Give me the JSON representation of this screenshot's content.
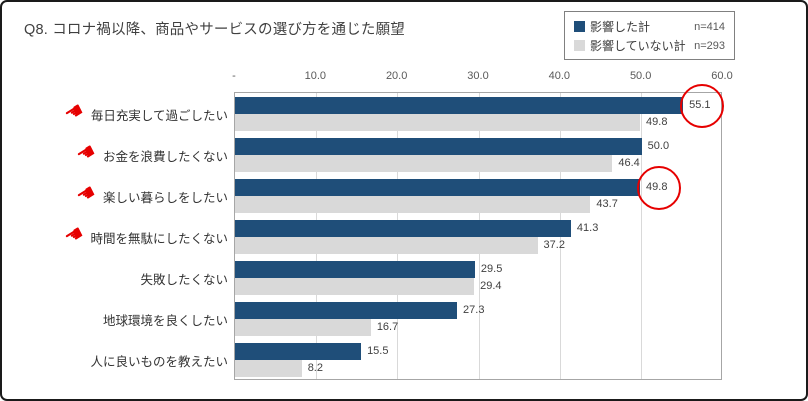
{
  "title": "Q8. コロナ禍以降、商品やサービスの選び方を通じた願望",
  "legend": {
    "items": [
      {
        "label": "影響した計",
        "n": "n=414",
        "color": "#1f4e79"
      },
      {
        "label": "影響していない計",
        "n": "n=293",
        "color": "#d9d9d9"
      }
    ]
  },
  "colors": {
    "series1": "#1f4e79",
    "series2": "#d9d9d9",
    "highlight_red": "#e60000",
    "grid": "#d9d9d9",
    "plot_border": "#a6a6a6"
  },
  "icons": {
    "hand": "pointing-hand-icon",
    "hand_glyph": "☚"
  },
  "chart_data": {
    "type": "bar",
    "orientation": "horizontal",
    "title": "Q8. コロナ禍以降、商品やサービスの選び方を通じた願望",
    "categories": [
      "毎日充実して過ごしたい",
      "お金を浪費したくない",
      "楽しい暮らしをしたい",
      "時間を無駄にしたくない",
      "失敗したくない",
      "地球環境を良くしたい",
      "人に良いものを教えたい"
    ],
    "series": [
      {
        "name": "影響した計",
        "n": 414,
        "color": "#1f4e79",
        "values": [
          55.1,
          50.0,
          49.8,
          41.3,
          29.5,
          27.3,
          15.5
        ],
        "value_labels": [
          "55.1",
          "50.0",
          "49.8",
          "41.3",
          "29.5",
          "27.3",
          "15.5"
        ]
      },
      {
        "name": "影響していない計",
        "n": 293,
        "color": "#d9d9d9",
        "values": [
          49.8,
          46.4,
          43.7,
          37.2,
          29.4,
          16.7,
          8.2
        ],
        "value_labels": [
          "49.8",
          "46.4",
          "43.7",
          "37.2",
          "29.4",
          "16.7",
          "8.2"
        ]
      }
    ],
    "xlim": [
      0,
      60
    ],
    "x_ticks": [
      "-",
      "10.0",
      "20.0",
      "30.0",
      "40.0",
      "50.0",
      "60.0"
    ],
    "grid": true,
    "legend_position": "top-right",
    "hand_marked_category_indices": [
      0,
      1,
      2,
      3
    ],
    "circled_values": [
      {
        "series": 0,
        "category_index": 0,
        "value": 55.1
      },
      {
        "series": 0,
        "category_index": 2,
        "value": 49.8
      }
    ]
  }
}
